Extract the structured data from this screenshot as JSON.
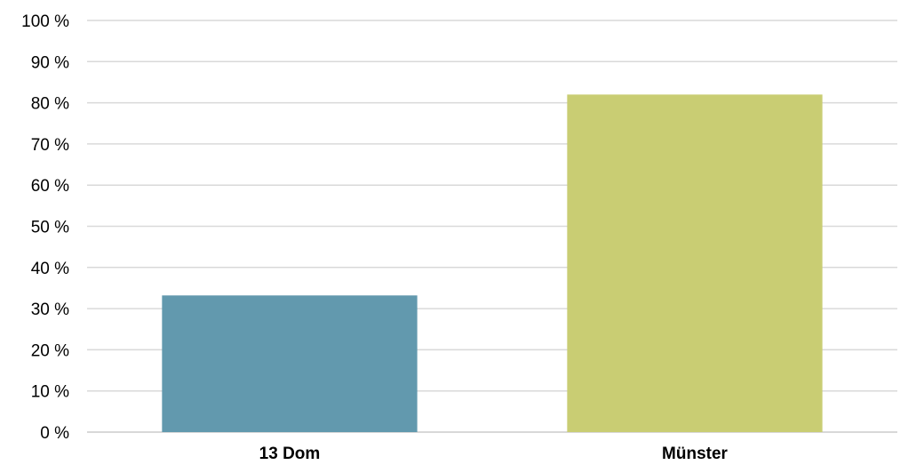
{
  "chart_data": {
    "type": "bar",
    "title": "",
    "xlabel": "",
    "ylabel": "",
    "categories": [
      "13 Dom",
      "Münster"
    ],
    "values": [
      33.2,
      82
    ],
    "colors": [
      "#6299ae",
      "#c9cd73"
    ],
    "ylim": [
      0,
      100
    ],
    "yticks": [
      0,
      10,
      20,
      30,
      40,
      50,
      60,
      70,
      80,
      90,
      100
    ],
    "ytick_labels": [
      "0 %",
      "10 %",
      "20 %",
      "30 %",
      "40 %",
      "50 %",
      "60 %",
      "70 %",
      "80 %",
      "90 %",
      "100 %"
    ],
    "grid": true,
    "legend": "none"
  }
}
